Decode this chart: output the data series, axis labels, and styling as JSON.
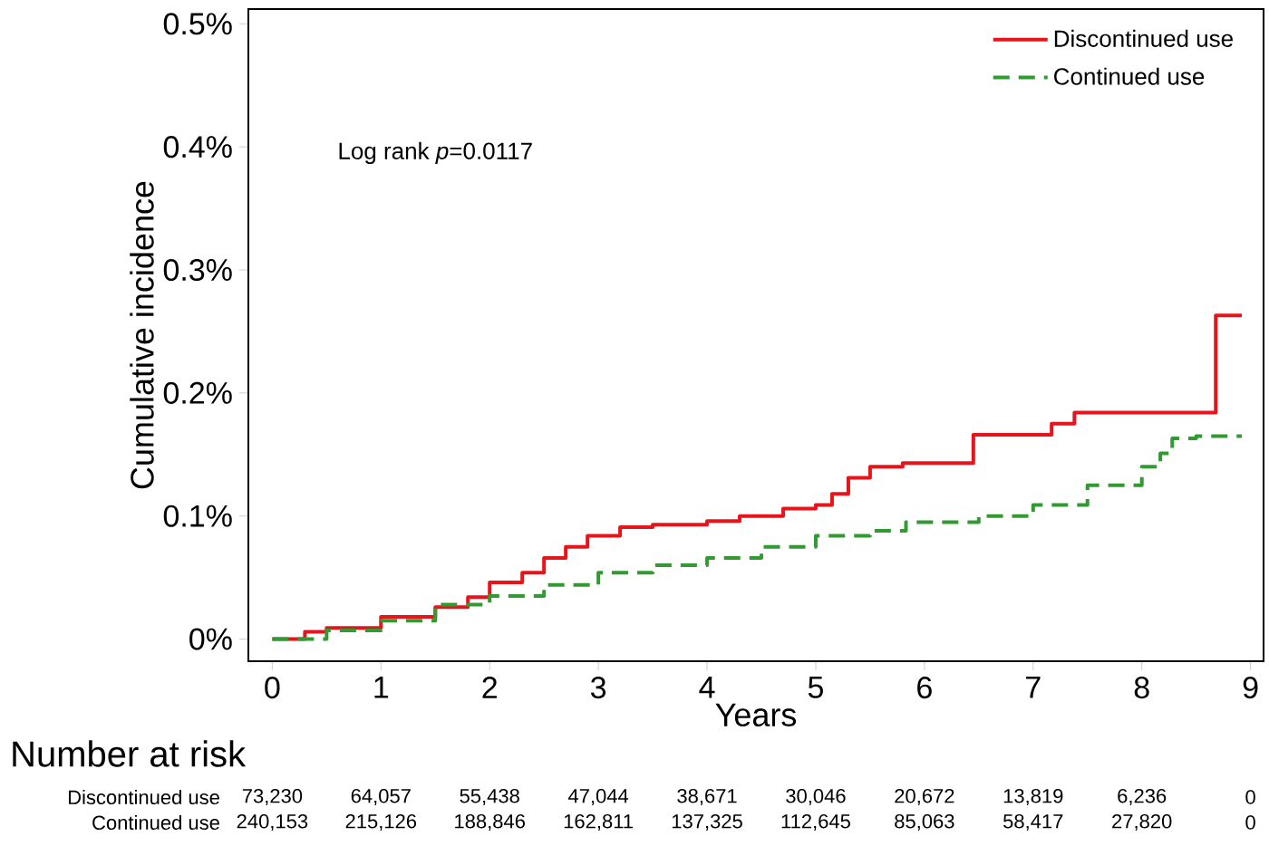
{
  "chart_data": {
    "type": "step",
    "xlabel": "Years",
    "ylabel": "Cumulative incidence",
    "x": [
      0,
      0.3,
      0.5,
      1.0,
      1.5,
      1.8,
      2.0,
      2.3,
      2.5,
      2.7,
      2.9,
      3.2,
      3.5,
      4.0,
      4.3,
      4.7,
      5.0,
      5.15,
      5.3,
      5.5,
      5.8,
      6.3,
      6.45,
      7.17,
      7.38,
      8.68,
      8.92
    ],
    "series": [
      {
        "name": "Discontinued use",
        "color": "#e8141c",
        "line_style": "solid",
        "values": [
          0,
          0.006,
          0.009,
          0.018,
          0.026,
          0.034,
          0.046,
          0.054,
          0.066,
          0.075,
          0.084,
          0.091,
          0.093,
          0.096,
          0.1,
          0.106,
          0.109,
          0.118,
          0.131,
          0.14,
          0.143,
          0.143,
          0.166,
          0.175,
          0.184,
          0.263,
          0.263
        ]
      },
      {
        "name": "Continued use",
        "color": "#339933",
        "line_style": "dashed",
        "x": [
          0,
          0.5,
          1.0,
          1.5,
          2.0,
          2.5,
          3.0,
          3.5,
          4.0,
          4.5,
          5.0,
          5.5,
          5.83,
          6.5,
          7.0,
          7.5,
          8.0,
          8.17,
          8.28,
          8.5,
          8.92
        ],
        "values": [
          0,
          0.007,
          0.015,
          0.028,
          0.035,
          0.044,
          0.054,
          0.06,
          0.066,
          0.075,
          0.084,
          0.088,
          0.095,
          0.1,
          0.109,
          0.125,
          0.14,
          0.151,
          0.163,
          0.165,
          0.165
        ]
      }
    ],
    "xlim": [
      -0.22,
      9.12
    ],
    "ylim": [
      -0.018,
      0.512
    ],
    "xticks": [
      0,
      1,
      2,
      3,
      4,
      5,
      6,
      7,
      8,
      9
    ],
    "yticks": [
      {
        "value": 0,
        "label": "0%"
      },
      {
        "value": 0.1,
        "label": "0.1%"
      },
      {
        "value": 0.2,
        "label": "0.2%"
      },
      {
        "value": 0.3,
        "label": "0.3%"
      },
      {
        "value": 0.4,
        "label": "0.4%"
      },
      {
        "value": 0.5,
        "label": "0.5%"
      }
    ],
    "legend": "top right",
    "grid": false,
    "annotations": [
      "Log rank *p*=0.0117",
      "Number at risk",
      "Discontinued use",
      "73,230",
      "64,057",
      "55,438",
      "47,044",
      "38,671",
      "30,046",
      "20,672",
      "13,819",
      "6,236",
      "0",
      "Continued use",
      "240,153",
      "215,126",
      "188,846",
      "162,811",
      "137,325",
      "112,645",
      "85,063",
      "58,417",
      "27,820",
      "0"
    ]
  }
}
